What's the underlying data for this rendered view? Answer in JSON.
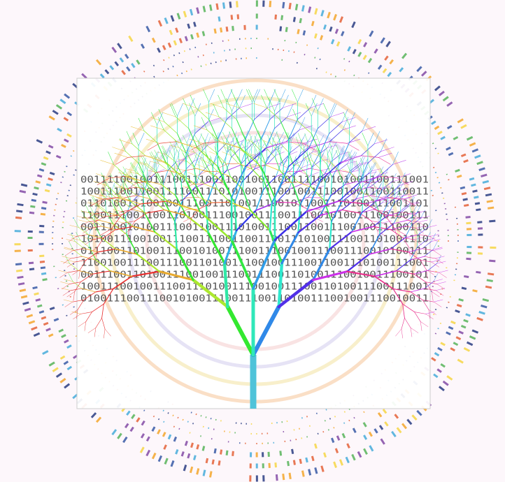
{
  "image": {
    "binary_rows": [
      "00111100100111001110011001001100111100101001100111001",
      "10011100110011110011101010011100100111001001100110011",
      "01101001110010011100110100111001011001110100111001101",
      "11001110011001101001110010011100111001010011100100111",
      "00111001010011100110011101001110011001110010011100110",
      "10100111001001110011100110011001110100111001101001110",
      "01110011010011100101001110011100100111001110010100111",
      "11001001110011100110100111001001110011001110100111001",
      "00111001101001110010011100111001101001110010011100101",
      "10011100100111001110100111001001110011010011100111001",
      "01001110011100101001110011100110100111001001110010011"
    ]
  }
}
